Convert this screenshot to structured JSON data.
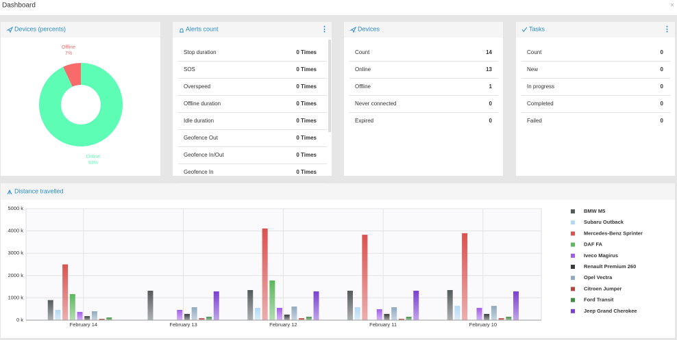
{
  "header": {
    "title": "Dashboard"
  },
  "alerts": {
    "title": "Alerts count",
    "rows": [
      {
        "label": "Stop duration",
        "value": "0 Times"
      },
      {
        "label": "SOS",
        "value": "0 Times"
      },
      {
        "label": "Overspeed",
        "value": "0 Times"
      },
      {
        "label": "Offline duration",
        "value": "0 Times"
      },
      {
        "label": "Idle duration",
        "value": "0 Times"
      },
      {
        "label": "Geofence Out",
        "value": "0 Times"
      },
      {
        "label": "Geofence In/Out",
        "value": "0 Times"
      },
      {
        "label": "Geofence In",
        "value": "0 Times"
      }
    ]
  },
  "devices": {
    "title": "Devices",
    "rows": [
      {
        "label": "Count",
        "value": 14
      },
      {
        "label": "Online",
        "value": 13
      },
      {
        "label": "Offline",
        "value": 1
      },
      {
        "label": "Never connected",
        "value": 0
      },
      {
        "label": "Expired",
        "value": 0
      }
    ]
  },
  "tasks": {
    "title": "Tasks",
    "rows": [
      {
        "label": "Count",
        "value": 0
      },
      {
        "label": "New",
        "value": 0
      },
      {
        "label": "In progress",
        "value": 0
      },
      {
        "label": "Completed",
        "value": 0
      },
      {
        "label": "Failed",
        "value": 0
      }
    ]
  },
  "chart_data": [
    {
      "type": "pie",
      "title": "Devices (percents)",
      "donut": true,
      "categories": [
        "Offline",
        "Online"
      ],
      "values": [
        7,
        93
      ],
      "value_labels": [
        "7%",
        "93%"
      ],
      "colors": [
        "#f76b6b",
        "#5dfdb5"
      ]
    },
    {
      "type": "bar",
      "title": "Distance travelled",
      "grid": true,
      "legend": "right",
      "categories": [
        "February 14",
        "February 13",
        "February 12",
        "February 11",
        "February 10"
      ],
      "ylim": [
        0,
        5000
      ],
      "yticks": [
        {
          "value": 0,
          "label": "0 k"
        },
        {
          "value": 1000,
          "label": "1000 k"
        },
        {
          "value": 2000,
          "label": "2000 k"
        },
        {
          "value": 3000,
          "label": "3000 k"
        },
        {
          "value": 4000,
          "label": "4000 k"
        },
        {
          "value": 5000,
          "label": "5000 k"
        }
      ],
      "series": [
        {
          "name": "BMW M5",
          "color": "#555a5c",
          "values": [
            900,
            1320,
            1350,
            1320,
            1350
          ]
        },
        {
          "name": "Subaru Outback",
          "color": "#b3d9f5",
          "values": [
            460,
            0,
            550,
            580,
            640
          ]
        },
        {
          "name": "Mercedes-Benz Sprinter",
          "color": "#d9534f",
          "values": [
            2500,
            0,
            4110,
            3830,
            3900
          ]
        },
        {
          "name": "DAF FA",
          "color": "#5cb85c",
          "values": [
            1170,
            0,
            1780,
            0,
            0
          ]
        },
        {
          "name": "Iveco Magirus",
          "color": "#a35ee8",
          "values": [
            370,
            460,
            550,
            490,
            550
          ]
        },
        {
          "name": "Renault Premium 260",
          "color": "#3a3d3f",
          "values": [
            180,
            280,
            250,
            280,
            280
          ]
        },
        {
          "name": "Opel Vectra",
          "color": "#8fa9bf",
          "values": [
            400,
            580,
            610,
            580,
            640
          ]
        },
        {
          "name": "Citroen Jumper",
          "color": "#b4473c",
          "values": [
            60,
            90,
            90,
            60,
            90
          ]
        },
        {
          "name": "Ford Transit",
          "color": "#3e8e41",
          "values": [
            120,
            150,
            150,
            150,
            150
          ]
        },
        {
          "name": "Jeep Grand Cherokee",
          "color": "#7a3fd1",
          "values": [
            0,
            1290,
            1290,
            1320,
            1290
          ]
        }
      ]
    }
  ]
}
